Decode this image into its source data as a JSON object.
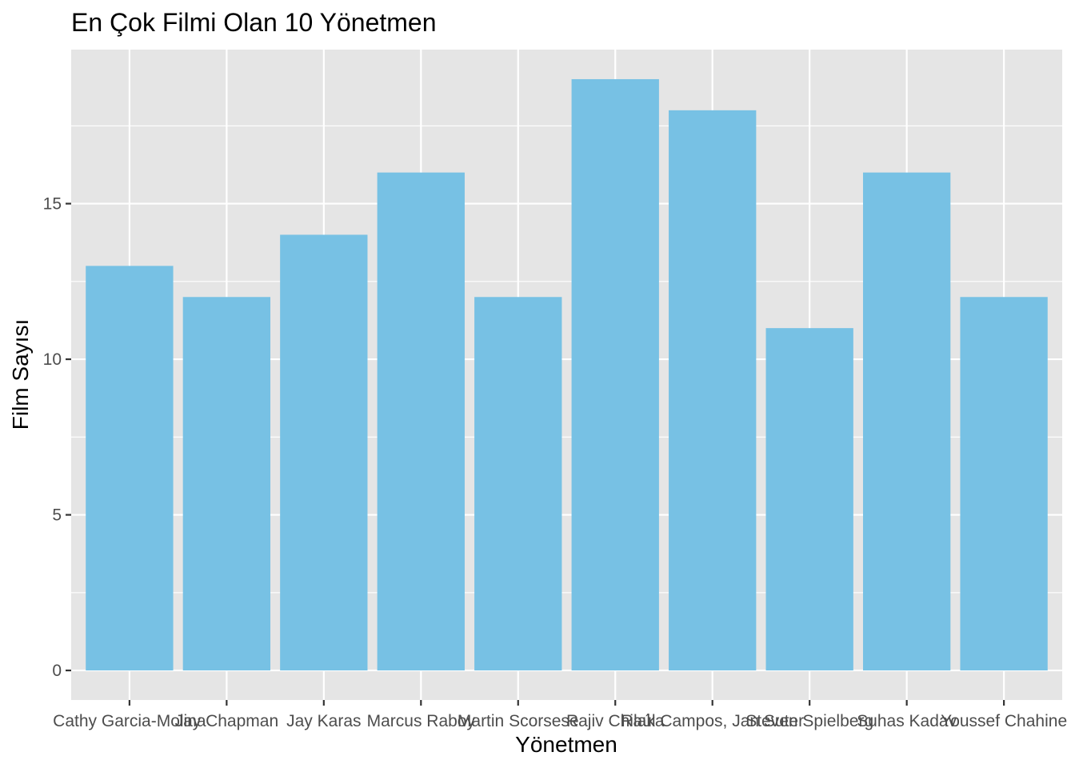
{
  "chart_data": {
    "type": "bar",
    "title": "En Çok Filmi Olan 10 Yönetmen",
    "xlabel": "Yönetmen",
    "ylabel": "Film Sayısı",
    "categories": [
      "Cathy Garcia-Molina",
      "Jay Chapman",
      "Jay Karas",
      "Marcus Raboy",
      "Martin Scorsese",
      "Rajiv Chilaka",
      "Raúl Campos, Jan Suter",
      "Steven Spielberg",
      "Suhas Kadav",
      "Youssef Chahine"
    ],
    "values": [
      13,
      12,
      14,
      16,
      12,
      19,
      18,
      11,
      16,
      12
    ],
    "ylim": [
      -0.95,
      19.95
    ],
    "y_ticks": [
      0,
      5,
      10,
      15
    ],
    "y_tick_labels": [
      "0",
      "5",
      "10",
      "15"
    ],
    "grid": true,
    "legend": "none",
    "colors": {
      "bar": "#77c1e4",
      "panel": "#e5e5e5",
      "grid": "#ffffff",
      "text": "#000000",
      "tick_text": "#4d4d4d",
      "tick": "#333333"
    }
  }
}
